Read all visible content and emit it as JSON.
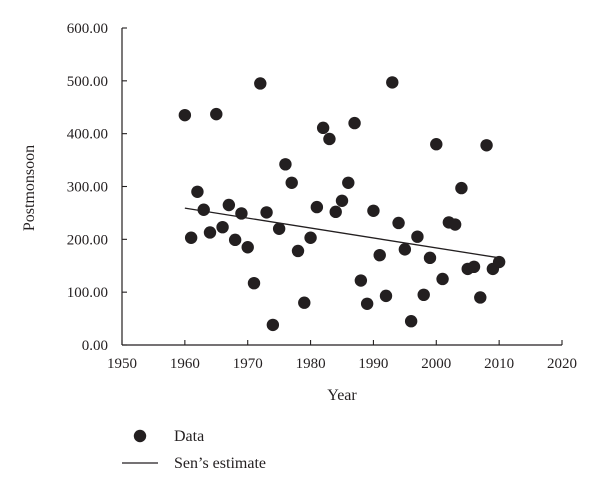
{
  "chart_data": {
    "type": "scatter",
    "xlabel": "Year",
    "ylabel": "Postmonsoon",
    "xlim": [
      1950,
      2020
    ],
    "ylim": [
      0,
      600
    ],
    "x_ticks": [
      "1950",
      "1960",
      "1970",
      "1980",
      "1990",
      "2000",
      "2010",
      "2020"
    ],
    "y_ticks": [
      "0.00",
      "100.00",
      "200.00",
      "300.00",
      "400.00",
      "500.00",
      "600.00"
    ],
    "grid": false,
    "legend_position": "bottom-left",
    "series": [
      {
        "name": "Data",
        "kind": "scatter",
        "color": "#231f20",
        "points": [
          [
            1960,
            435
          ],
          [
            1961,
            203
          ],
          [
            1962,
            290
          ],
          [
            1963,
            256
          ],
          [
            1964,
            213
          ],
          [
            1965,
            437
          ],
          [
            1966,
            223
          ],
          [
            1967,
            265
          ],
          [
            1968,
            199
          ],
          [
            1969,
            249
          ],
          [
            1970,
            185
          ],
          [
            1971,
            117
          ],
          [
            1972,
            495
          ],
          [
            1973,
            251
          ],
          [
            1974,
            38
          ],
          [
            1975,
            220
          ],
          [
            1976,
            342
          ],
          [
            1977,
            307
          ],
          [
            1978,
            178
          ],
          [
            1979,
            80
          ],
          [
            1980,
            203
          ],
          [
            1981,
            261
          ],
          [
            1982,
            411
          ],
          [
            1983,
            390
          ],
          [
            1984,
            252
          ],
          [
            1985,
            273
          ],
          [
            1986,
            307
          ],
          [
            1987,
            420
          ],
          [
            1988,
            122
          ],
          [
            1989,
            78
          ],
          [
            1990,
            254
          ],
          [
            1991,
            170
          ],
          [
            1992,
            93
          ],
          [
            1993,
            497
          ],
          [
            1994,
            231
          ],
          [
            1995,
            181
          ],
          [
            1996,
            45
          ],
          [
            1997,
            205
          ],
          [
            1998,
            95
          ],
          [
            1999,
            165
          ],
          [
            2000,
            380
          ],
          [
            2001,
            125
          ],
          [
            2002,
            232
          ],
          [
            2003,
            228
          ],
          [
            2004,
            297
          ],
          [
            2005,
            144
          ],
          [
            2006,
            148
          ],
          [
            2007,
            90
          ],
          [
            2008,
            378
          ],
          [
            2009,
            144
          ],
          [
            2010,
            157
          ]
        ]
      },
      {
        "name": "Sen’s estimate",
        "kind": "line",
        "color": "#231f20",
        "points": [
          [
            1960,
            259
          ],
          [
            2010,
            165
          ]
        ]
      }
    ]
  }
}
